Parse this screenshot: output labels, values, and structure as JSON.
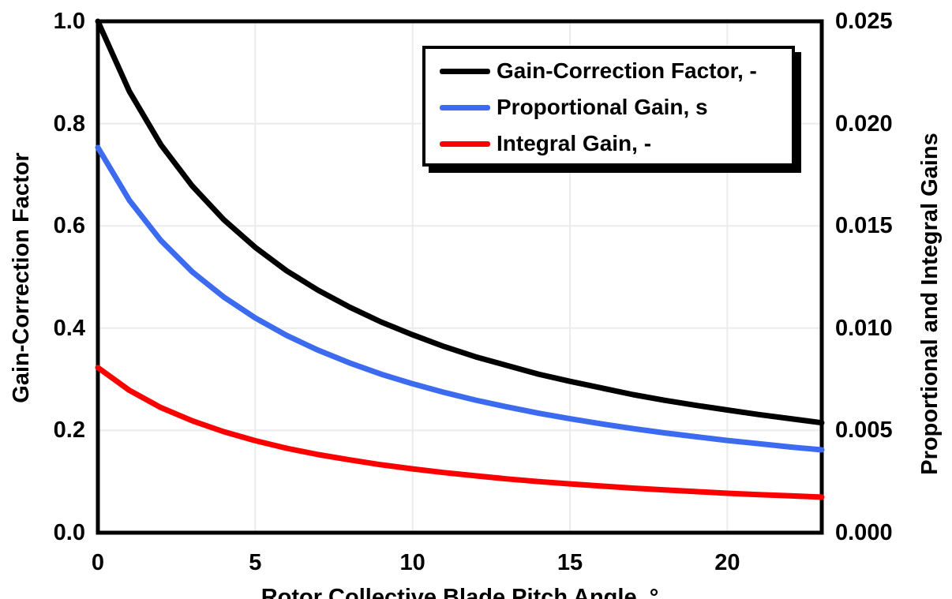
{
  "colors": {
    "background": "#ffffff",
    "frame": "#000000",
    "grid": "#ebebeb",
    "text": "#000000",
    "legend_shadow": "#000000"
  },
  "axes": {
    "x": {
      "title": "Rotor Collective Blade Pitch Angle, °",
      "tick_values": [
        0,
        5,
        10,
        15,
        20
      ],
      "tick_labels": [
        "0",
        "5",
        "10",
        "15",
        "20"
      ]
    },
    "y_left": {
      "title": "Gain-Correction Factor",
      "tick_values": [
        0.0,
        0.2,
        0.4,
        0.6,
        0.8,
        1.0
      ],
      "tick_labels": [
        "0.0",
        "0.2",
        "0.4",
        "0.6",
        "0.8",
        "1.0"
      ]
    },
    "y_right": {
      "title": "Proportional and Integral Gains",
      "tick_values": [
        0.0,
        0.005,
        0.01,
        0.015,
        0.02,
        0.025
      ],
      "tick_labels": [
        "0.000",
        "0.005",
        "0.010",
        "0.015",
        "0.020",
        "0.025"
      ]
    }
  },
  "chart_data": {
    "type": "line",
    "title": "",
    "xlabel": "Rotor Collective Blade Pitch Angle, °",
    "ylabel_left": "Gain-Correction Factor",
    "ylabel_right": "Proportional and Integral Gains",
    "xlim": [
      0,
      23
    ],
    "ylim_left": [
      0.0,
      1.0
    ],
    "ylim_right": [
      0.0,
      0.025
    ],
    "x_ticks": [
      0,
      5,
      10,
      15,
      20
    ],
    "y_ticks_left": [
      0.0,
      0.2,
      0.4,
      0.6,
      0.8,
      1.0
    ],
    "y_ticks_right": [
      0.0,
      0.005,
      0.01,
      0.015,
      0.02,
      0.025
    ],
    "grid": true,
    "legend_position": "top-right-inside",
    "x": [
      0,
      1,
      2,
      3,
      4,
      5,
      6,
      7,
      8,
      9,
      10,
      11,
      12,
      13,
      14,
      15,
      16,
      17,
      18,
      19,
      20,
      21,
      22,
      23
    ],
    "series": [
      {
        "name": "Gain-Correction Factor, -",
        "axis": "left",
        "color": "#000000",
        "values": [
          1.0,
          0.863,
          0.759,
          0.678,
          0.612,
          0.558,
          0.512,
          0.474,
          0.441,
          0.412,
          0.387,
          0.364,
          0.344,
          0.327,
          0.31,
          0.296,
          0.283,
          0.27,
          0.259,
          0.249,
          0.24,
          0.231,
          0.223,
          0.215
        ]
      },
      {
        "name": "Proportional Gain, s",
        "axis": "right",
        "color": "#3C6BF0",
        "values": [
          0.01883,
          0.01625,
          0.01429,
          0.01275,
          0.01152,
          0.0105,
          0.00964,
          0.00892,
          0.0083,
          0.00775,
          0.00728,
          0.00686,
          0.00648,
          0.00615,
          0.00584,
          0.00557,
          0.00532,
          0.00509,
          0.00488,
          0.00469,
          0.00451,
          0.00435,
          0.00419,
          0.00405
        ]
      },
      {
        "name": "Integral Gain, -",
        "axis": "right",
        "color": "#FC0000",
        "values": [
          0.00807,
          0.00696,
          0.00612,
          0.00547,
          0.00494,
          0.0045,
          0.00413,
          0.00382,
          0.00356,
          0.00332,
          0.00312,
          0.00294,
          0.00278,
          0.00263,
          0.0025,
          0.00239,
          0.00228,
          0.00218,
          0.00209,
          0.00201,
          0.00193,
          0.00186,
          0.0018,
          0.00174
        ]
      }
    ]
  }
}
